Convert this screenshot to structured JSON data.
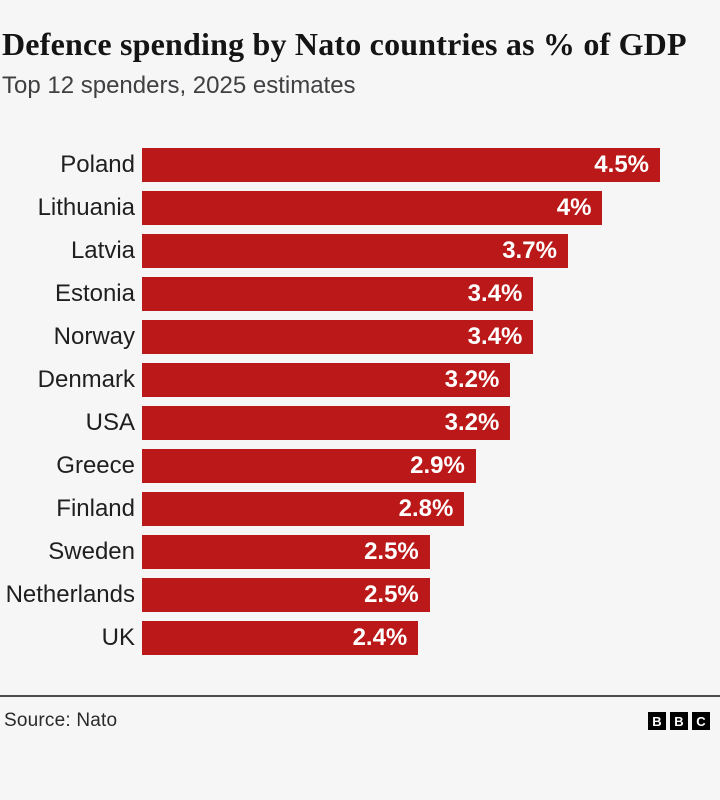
{
  "header": {
    "title": "Defence spending by Nato countries as % of GDP",
    "subtitle": "Top 12 spenders, 2025 estimates"
  },
  "chart_data": {
    "type": "bar",
    "orientation": "horizontal",
    "title": "Defence spending by Nato countries as % of GDP",
    "subtitle": "Top 12 spenders, 2025 estimates",
    "categories": [
      "Poland",
      "Lithuania",
      "Latvia",
      "Estonia",
      "Norway",
      "Denmark",
      "USA",
      "Greece",
      "Finland",
      "Sweden",
      "Netherlands",
      "UK"
    ],
    "values": [
      4.5,
      4.0,
      3.7,
      3.4,
      3.4,
      3.2,
      3.2,
      2.9,
      2.8,
      2.5,
      2.5,
      2.4
    ],
    "value_labels": [
      "4.5%",
      "4%",
      "3.7%",
      "3.4%",
      "3.4%",
      "3.2%",
      "3.2%",
      "2.9%",
      "2.8%",
      "2.5%",
      "2.5%",
      "2.4%"
    ],
    "xlabel": "",
    "ylabel": "",
    "xlim": [
      0,
      4.5
    ],
    "grid": false,
    "legend": false,
    "bar_color": "#bb1919",
    "value_label_color": "#ffffff"
  },
  "footer": {
    "source": "Source: Nato",
    "logo_letters": [
      "B",
      "B",
      "C"
    ]
  },
  "colors": {
    "background": "#f6f6f6",
    "bar": "#bb1919",
    "title_text": "#141414",
    "subtitle_text": "#404043",
    "label_text": "#1f1f1f",
    "divider": "#4c4c4c"
  }
}
